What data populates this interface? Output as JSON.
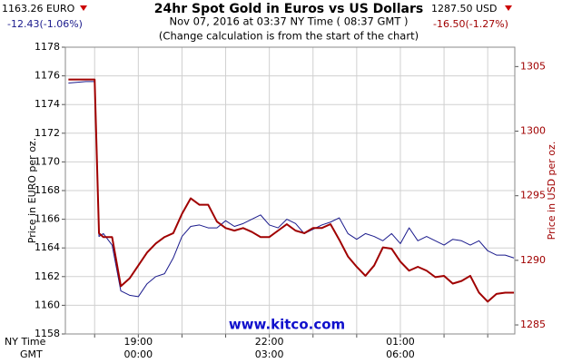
{
  "chart_data": {
    "type": "line",
    "title": "24hr Spot Gold in Euros vs US Dollars",
    "subtitle": "Nov 07, 2016 at 03:37 NY Time ( 08:37 GMT )",
    "note": "(Change calculation is from the start of the chart)",
    "left_quote": "1163.26 EURO",
    "left_change": "-12.43(-1.06%)",
    "right_quote": "1287.50 USD",
    "right_change": "-16.50(-1.27%)",
    "watermark": "www.kitco.com",
    "ylabel": "Price in EURO per oz.",
    "y2label": "Price in USD per oz.",
    "xlabel": "NY Time",
    "x2label": "GMT",
    "grid": true,
    "x": [
      17.4,
      17.8,
      18.0,
      18.1,
      18.2,
      18.4,
      18.6,
      18.8,
      19.0,
      19.2,
      19.4,
      19.6,
      19.8,
      20.0,
      20.2,
      20.4,
      20.6,
      20.8,
      21.0,
      21.2,
      21.4,
      21.6,
      21.8,
      22.0,
      22.2,
      22.4,
      22.6,
      22.8,
      23.0,
      23.2,
      23.4,
      23.6,
      23.8,
      24.0,
      24.2,
      24.4,
      24.6,
      24.8,
      25.0,
      25.2,
      25.4,
      25.6,
      25.8,
      26.0,
      26.2,
      26.4,
      26.6,
      26.8,
      27.0,
      27.2,
      27.4,
      27.6
    ],
    "xlim": [
      17.33,
      27.62
    ],
    "xgrid": [
      18,
      19,
      20,
      21,
      22,
      23,
      24,
      25,
      26,
      27
    ],
    "xticks": [
      {
        "value": 19,
        "label": "19:00"
      },
      {
        "value": 22,
        "label": "22:00"
      },
      {
        "value": 25,
        "label": "01:00"
      }
    ],
    "xticks2": [
      {
        "value": 19,
        "label": "00:00"
      },
      {
        "value": 22,
        "label": "03:00"
      },
      {
        "value": 25,
        "label": "06:00"
      }
    ],
    "ylim": [
      1158,
      1178
    ],
    "yticks": [
      1158,
      1160,
      1162,
      1164,
      1166,
      1168,
      1170,
      1172,
      1174,
      1176,
      1178
    ],
    "y2lim": [
      1284.3,
      1306.5
    ],
    "y2ticks": [
      1285,
      1290,
      1295,
      1300,
      1305
    ],
    "series": [
      {
        "name": "EURO",
        "color": "#1a1a8c",
        "axis": "y",
        "values": [
          1175.5,
          1175.6,
          1175.6,
          1164.8,
          1165.0,
          1164.2,
          1161.0,
          1160.7,
          1160.6,
          1161.5,
          1162.0,
          1162.2,
          1163.3,
          1164.8,
          1165.5,
          1165.6,
          1165.4,
          1165.4,
          1165.9,
          1165.5,
          1165.7,
          1166.0,
          1166.3,
          1165.6,
          1165.4,
          1166.0,
          1165.7,
          1165.0,
          1165.3,
          1165.6,
          1165.8,
          1166.1,
          1165.0,
          1164.6,
          1165.0,
          1164.8,
          1164.5,
          1165.0,
          1164.3,
          1165.4,
          1164.5,
          1164.8,
          1164.5,
          1164.2,
          1164.6,
          1164.5,
          1164.2,
          1164.5,
          1163.8,
          1163.5,
          1163.5,
          1163.3
        ]
      },
      {
        "name": "USD",
        "color": "#a00000",
        "axis": "y2",
        "values": [
          1304.0,
          1304.0,
          1304.0,
          1292.1,
          1291.8,
          1291.8,
          1288.0,
          1288.6,
          1289.6,
          1290.6,
          1291.3,
          1291.8,
          1292.1,
          1293.6,
          1294.8,
          1294.3,
          1294.3,
          1293.0,
          1292.5,
          1292.3,
          1292.5,
          1292.2,
          1291.8,
          1291.8,
          1292.3,
          1292.8,
          1292.3,
          1292.1,
          1292.5,
          1292.5,
          1292.8,
          1291.6,
          1290.3,
          1289.5,
          1288.8,
          1289.6,
          1291.0,
          1290.9,
          1289.9,
          1289.2,
          1289.5,
          1289.2,
          1288.7,
          1288.8,
          1288.2,
          1288.4,
          1288.8,
          1287.5,
          1286.8,
          1287.4,
          1287.5,
          1287.5
        ]
      }
    ]
  }
}
